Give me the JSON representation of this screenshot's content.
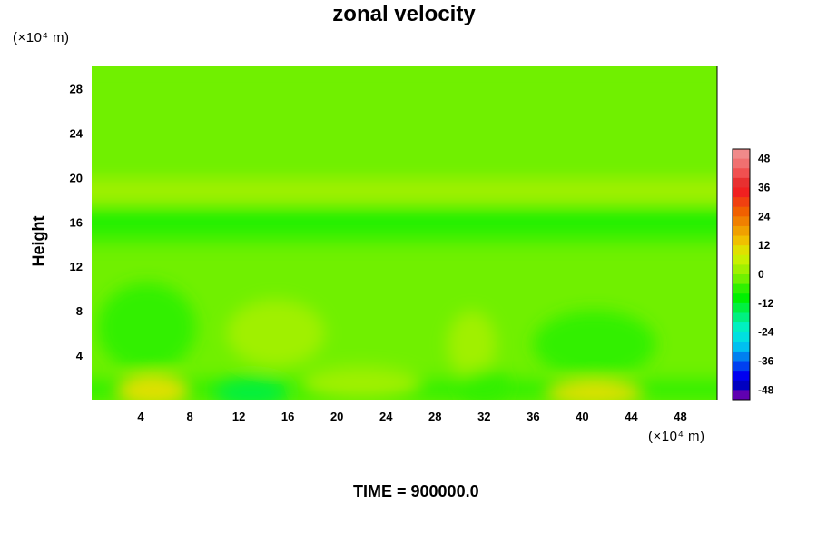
{
  "chart_data": {
    "type": "heatmap",
    "title": "zonal velocity",
    "ylabel": "Height",
    "xlabel": "",
    "x_unit": "(×10⁴ m)",
    "y_unit": "(×10⁴ m)",
    "footer": "TIME = 900000.0",
    "x_ticks": [
      4,
      8,
      12,
      16,
      20,
      24,
      28,
      32,
      36,
      40,
      44,
      48
    ],
    "y_ticks": [
      4,
      8,
      12,
      16,
      20,
      24,
      28
    ],
    "xlim": [
      0,
      51
    ],
    "ylim": [
      0,
      30
    ],
    "colorbar": {
      "ticks": [
        48,
        36,
        24,
        12,
        0,
        -12,
        -24,
        -36,
        -48
      ],
      "range": [
        -52,
        52
      ],
      "levels": 26,
      "colors_top_to_bottom": [
        "#f08a8a",
        "#f07070",
        "#f05050",
        "#e83030",
        "#f02020",
        "#f04010",
        "#f06000",
        "#f08000",
        "#f0a000",
        "#f0c000",
        "#e0e000",
        "#c8f000",
        "#a0f000",
        "#70f000",
        "#30f000",
        "#00f000",
        "#00f040",
        "#00f080",
        "#00f0c0",
        "#00e0e0",
        "#00c0f0",
        "#0080f0",
        "#0040f0",
        "#0000f0",
        "#0000c0",
        "#6000b0"
      ]
    },
    "bands": [
      {
        "y": [
          0,
          2
        ],
        "value": -4
      },
      {
        "y": [
          2,
          10
        ],
        "value": -3
      },
      {
        "y": [
          10,
          14
        ],
        "value": -1
      },
      {
        "y": [
          14,
          16
        ],
        "value": -4
      },
      {
        "y": [
          16,
          17.5
        ],
        "value": -9
      },
      {
        "y": [
          17.5,
          19.8
        ],
        "value": 4
      },
      {
        "y": [
          19.8,
          21
        ],
        "value": 0
      },
      {
        "y": [
          21,
          30
        ],
        "value": -2
      }
    ],
    "features": [
      {
        "x": 4.5,
        "y": 6.5,
        "rx": 4,
        "ry": 4,
        "value": -8
      },
      {
        "x": 15,
        "y": 6,
        "rx": 4,
        "ry": 3,
        "value": 3
      },
      {
        "x": 41,
        "y": 5,
        "rx": 5,
        "ry": 3,
        "value": -7
      },
      {
        "x": 31,
        "y": 5,
        "rx": 2,
        "ry": 3,
        "value": 2
      },
      {
        "x": 5,
        "y": 0.8,
        "rx": 3,
        "ry": 1.5,
        "value": 12
      },
      {
        "x": 13,
        "y": 0.6,
        "rx": 3,
        "ry": 1.2,
        "value": -12
      },
      {
        "x": 41,
        "y": 0.6,
        "rx": 4,
        "ry": 1.2,
        "value": 10
      },
      {
        "x": 32,
        "y": 1.2,
        "rx": 2,
        "ry": 1.5,
        "value": -8
      },
      {
        "x": 22,
        "y": 1.5,
        "rx": 5,
        "ry": 1.5,
        "value": 1
      }
    ]
  }
}
